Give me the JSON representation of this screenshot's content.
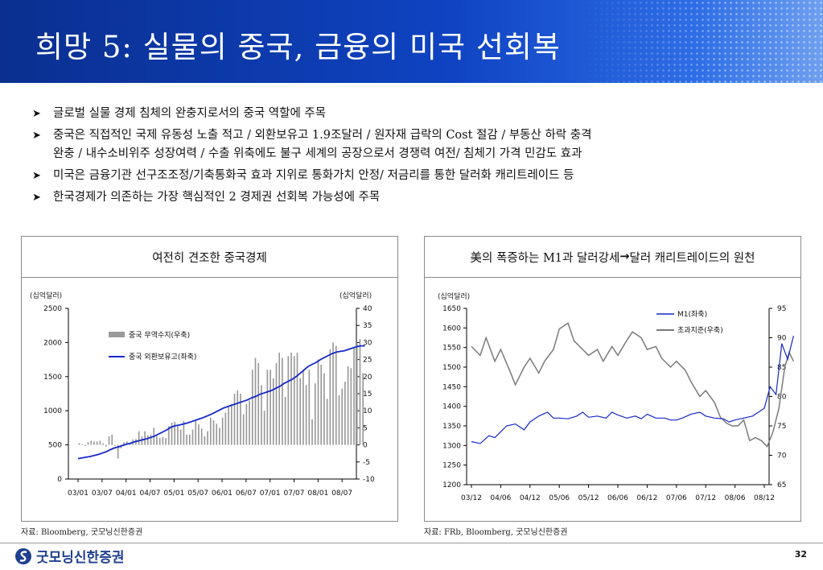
{
  "header": {
    "title": "희망 5: 실물의 중국, 금융의 미국 선회복"
  },
  "bullets": [
    "글로벌 실물 경제 침체의 완충지로서의 중국 역할에 주목",
    "중국은 직접적인 국제 유동성 노출 적고 / 외환보유고 1.9조달러 / 원자재 급락의 Cost 절감 / 부동산 하락 충격",
    "완충 / 내수소비위주 성장여력 / 수출 위축에도 불구 세계의 공장으로서 경쟁력 여전/ 침체기 가격 민감도 효과",
    "미국은 금융기관 선구조조정/기축통화국 효과 지위로 통화가치 안정/ 저금리를 통한 달러화 캐리트레이드 등",
    "한국경제가 의존하는 가장 핵심적인 2 경제권 선회복 가능성에 주목"
  ],
  "left_panel": {
    "title": "여전히 견조한 중국경제",
    "source": "자료: Bloomberg, 굿모닝신한증권"
  },
  "right_panel": {
    "title_prefix": "美의 폭증하는 M1과 달러강세 ",
    "title_suffix": " 달러 캐리트레이드의 원천",
    "source": "자료: FRb, Bloomberg, 굿모닝신한증권"
  },
  "footer": {
    "company": "굿모닝신한증권",
    "page": "32"
  },
  "chart_data": [
    {
      "type": "bar+line",
      "left_unit": "(십억달러)",
      "right_unit": "(십억달러)",
      "left_ylim": [
        0,
        2500
      ],
      "left_ticks": [
        0,
        500,
        1000,
        1500,
        2000,
        2500
      ],
      "right_ylim": [
        -10,
        40
      ],
      "right_ticks": [
        -10,
        -5,
        0,
        5,
        10,
        15,
        20,
        25,
        30,
        35,
        40
      ],
      "x_ticks": [
        "03/01",
        "03/07",
        "04/01",
        "04/07",
        "05/01",
        "05/07",
        "06/01",
        "06/07",
        "07/01",
        "07/07",
        "08/01",
        "08/07"
      ],
      "legend": [
        {
          "name": "중국 무역수지(우축)",
          "color": "#9a9a9a"
        },
        {
          "name": "중국 외환보유고(좌축)",
          "color": "#1428c8"
        }
      ],
      "series": [
        {
          "name": "중국 무역수지(우축)",
          "axis": "right",
          "values": [
            0.5,
            0.2,
            -0.3,
            0.8,
            1.2,
            1.0,
            1.0,
            1.2,
            0.5,
            -0.5,
            2.5,
            3.0,
            -0.3,
            -4.0,
            -1.0,
            0.8,
            1.0,
            0.3,
            1.6,
            1.7,
            4.0,
            2.5,
            4.0,
            2.8,
            3.0,
            5.0,
            2.5,
            2.0,
            2.3,
            2.0,
            5.5,
            6.5,
            6.8,
            5.5,
            4.5,
            7.0,
            3.0,
            3.0,
            4.5,
            7.0,
            6.0,
            4.8,
            2.5,
            4.0,
            8.0,
            7.2,
            6.2,
            5.0,
            8.0,
            9.5,
            11.0,
            12.0,
            15.0,
            16.0,
            15.0,
            9.0,
            12.0,
            13.0,
            22.0,
            25.5,
            24.0,
            17.5,
            10.0,
            22.0,
            22.0,
            19.5,
            24.0,
            27.0,
            25.5,
            14.0,
            26.0,
            27.0,
            26.0,
            27.0,
            19.5,
            22.0,
            17.5,
            22.0,
            7.5,
            18.0,
            25.0,
            23.5,
            21.0,
            13.5,
            28.0,
            30.0,
            29.0,
            14.5,
            16.5,
            18.5,
            23.0,
            22.5,
            28.5,
            30.0,
            31.0,
            21.0
          ]
        },
        {
          "name": "중국 외환보유고(좌축)",
          "axis": "left",
          "values": [
            300,
            310,
            320,
            330,
            345,
            360,
            380,
            400,
            430,
            455,
            470,
            490,
            510,
            525,
            545,
            560,
            575,
            590,
            610,
            630,
            660,
            690,
            720,
            760,
            780,
            790,
            805,
            820,
            840,
            860,
            880,
            900,
            925,
            950,
            980,
            1010,
            1040,
            1060,
            1080,
            1100,
            1120,
            1140,
            1160,
            1190,
            1210,
            1240,
            1260,
            1280,
            1300,
            1330,
            1360,
            1400,
            1430,
            1460,
            1500,
            1550,
            1600,
            1650,
            1680,
            1710,
            1750,
            1780,
            1810,
            1840,
            1860,
            1870,
            1880,
            1900,
            1920,
            1940,
            1950,
            1950
          ]
        }
      ]
    },
    {
      "type": "line",
      "left_unit": "(십억달러)",
      "left_ylim": [
        1200,
        1650
      ],
      "left_ticks": [
        1200,
        1250,
        1300,
        1350,
        1400,
        1450,
        1500,
        1550,
        1600,
        1650
      ],
      "right_ylim": [
        65,
        95
      ],
      "right_ticks": [
        65,
        70,
        75,
        80,
        85,
        90,
        95
      ],
      "x_ticks": [
        "03/12",
        "04/06",
        "04/12",
        "05/06",
        "05/12",
        "06/06",
        "06/12",
        "07/06",
        "07/12",
        "08/06",
        "08/12"
      ],
      "legend": [
        {
          "name": "M1(좌축)",
          "color": "#1428c8"
        },
        {
          "name": "초과지준(우축)",
          "color": "#7a7a7a"
        }
      ],
      "series": [
        {
          "name": "M1(좌축)",
          "axis": "left",
          "x": [
            0,
            0.3,
            0.6,
            0.8,
            1.0,
            1.2,
            1.5,
            1.8,
            2.0,
            2.3,
            2.6,
            2.8,
            3.0,
            3.3,
            3.6,
            3.8,
            4.0,
            4.3,
            4.6,
            4.8,
            5.0,
            5.3,
            5.6,
            5.8,
            6.0,
            6.3,
            6.6,
            6.8,
            7.0,
            7.2,
            7.5,
            7.8,
            8.0,
            8.3,
            8.6,
            8.8,
            9.0,
            9.3,
            9.6,
            9.8,
            10.0,
            10.2,
            10.4,
            10.6,
            10.8,
            11.0
          ],
          "values": [
            1310,
            1305,
            1325,
            1320,
            1335,
            1350,
            1355,
            1340,
            1360,
            1375,
            1385,
            1370,
            1370,
            1368,
            1375,
            1385,
            1372,
            1375,
            1370,
            1385,
            1378,
            1370,
            1375,
            1368,
            1380,
            1370,
            1370,
            1365,
            1365,
            1370,
            1380,
            1385,
            1375,
            1370,
            1368,
            1360,
            1365,
            1370,
            1375,
            1385,
            1395,
            1450,
            1430,
            1560,
            1520,
            1580
          ]
        },
        {
          "name": "초과지준(우축)",
          "axis": "right",
          "x": [
            0,
            0.3,
            0.5,
            0.8,
            1.0,
            1.3,
            1.5,
            1.8,
            2.0,
            2.3,
            2.5,
            2.8,
            3.0,
            3.3,
            3.5,
            3.8,
            4.0,
            4.3,
            4.5,
            4.8,
            5.0,
            5.3,
            5.5,
            5.8,
            6.0,
            6.3,
            6.5,
            6.8,
            7.0,
            7.3,
            7.5,
            7.8,
            8.0,
            8.3,
            8.5,
            8.7,
            8.9,
            9.1,
            9.3,
            9.5,
            9.7,
            9.9,
            10.1,
            10.3,
            10.5,
            10.7,
            10.85,
            11.0
          ],
          "values": [
            88.5,
            87.0,
            90.0,
            86.0,
            88.0,
            84.5,
            82.0,
            85.0,
            86.5,
            84.0,
            86.0,
            88.0,
            91.5,
            92.5,
            89.5,
            88.0,
            87.0,
            88.0,
            86.0,
            88.5,
            87.0,
            89.5,
            91.0,
            90.0,
            88.0,
            88.5,
            86.5,
            85.0,
            86.0,
            84.5,
            82.5,
            80.0,
            81.0,
            79.0,
            76.5,
            75.5,
            75.0,
            75.0,
            76.0,
            72.5,
            73.0,
            72.5,
            71.5,
            74.0,
            78.0,
            85.0,
            87.5,
            86.0
          ]
        }
      ]
    }
  ]
}
